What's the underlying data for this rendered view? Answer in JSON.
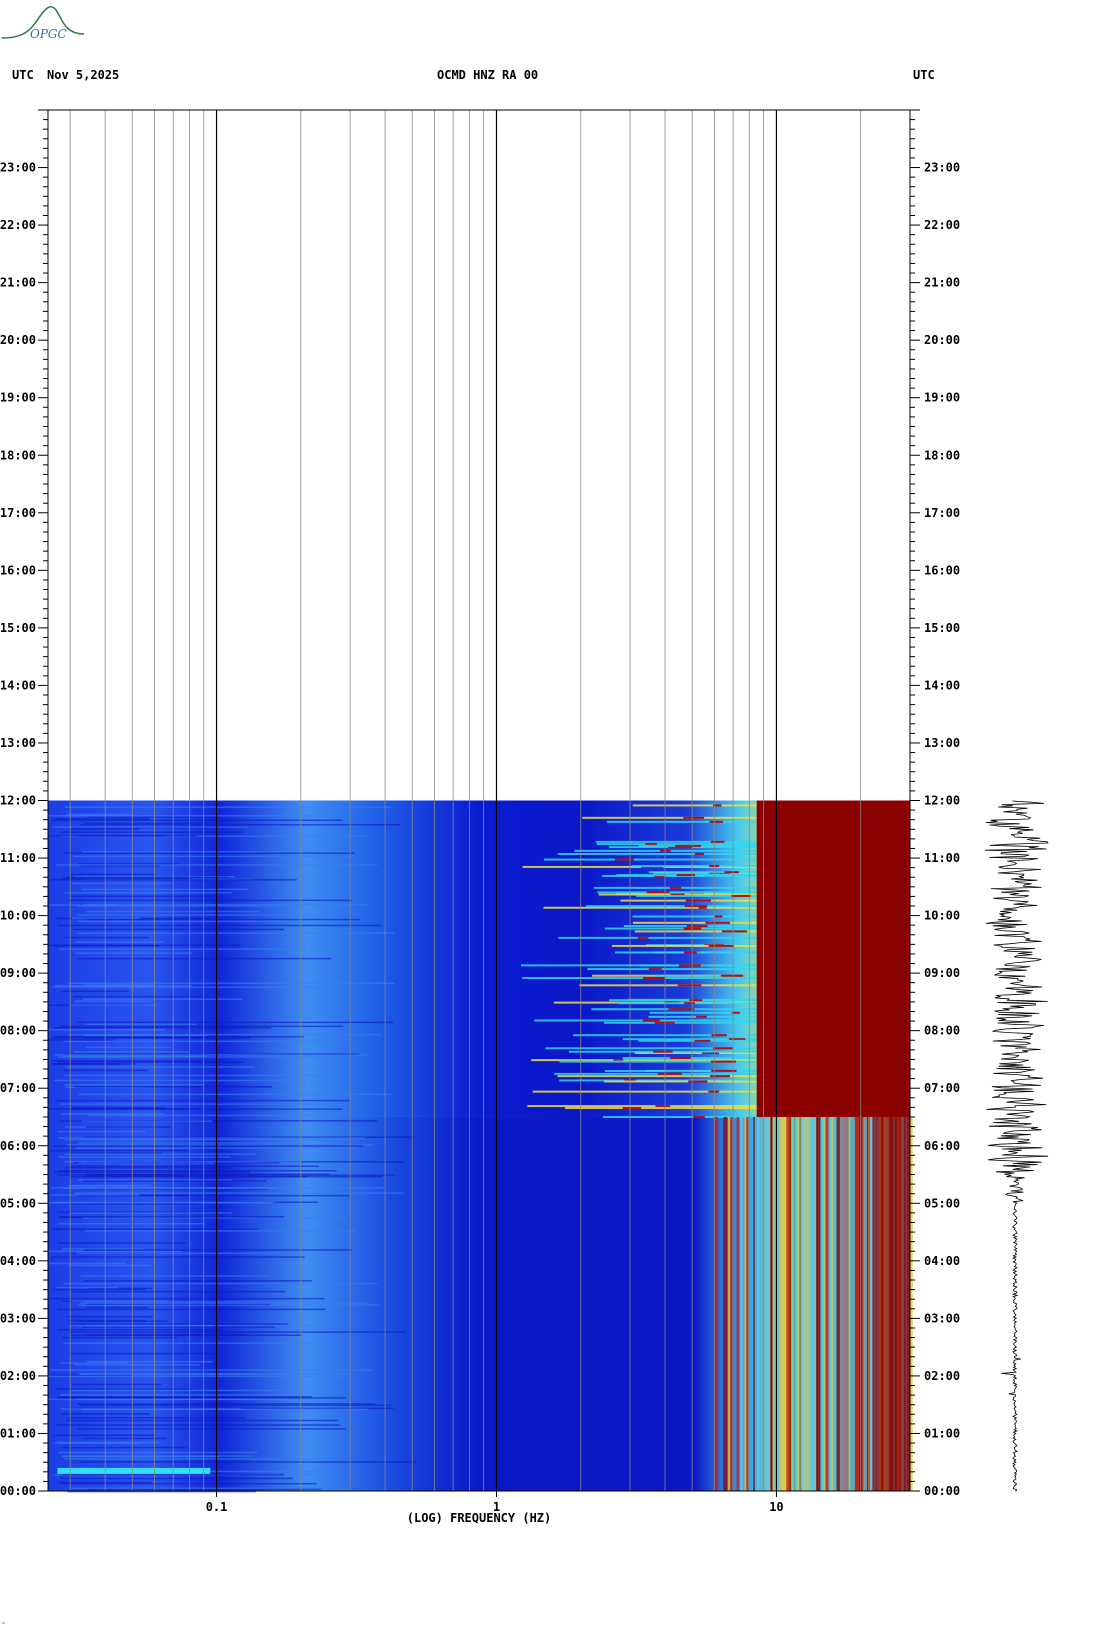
{
  "header": {
    "left_timezone": "UTC",
    "date": "Nov 5,2025",
    "station": "OCMD HNZ RA 00",
    "right_timezone": "UTC"
  },
  "logo": {
    "text": "OPGC",
    "color": "#2a7a3a"
  },
  "footer_mark": "‴",
  "colors": {
    "low": "#0a1ad8",
    "mid": "#2fd7f0",
    "high": "#f2e84a",
    "peak": "#8b0000"
  },
  "chart_data": {
    "type": "heatmap",
    "title": "OCMD HNZ RA 00",
    "xlabel": "(LOG) FREQUENCY (HZ)",
    "x_scale": "log",
    "x_range_hz": [
      0.025,
      30
    ],
    "x_ticks": [
      {
        "value": 0.1,
        "label": "0.1"
      },
      {
        "value": 1,
        "label": "1"
      },
      {
        "value": 10,
        "label": "10"
      }
    ],
    "y_range_hours": [
      0,
      24
    ],
    "y_tick_labels": [
      "00:00",
      "01:00",
      "02:00",
      "03:00",
      "04:00",
      "05:00",
      "06:00",
      "07:00",
      "08:00",
      "09:00",
      "10:00",
      "11:00",
      "12:00",
      "13:00",
      "14:00",
      "15:00",
      "16:00",
      "17:00",
      "18:00",
      "19:00",
      "20:00",
      "21:00",
      "22:00",
      "23:00"
    ],
    "data_end_time": "12:00",
    "grid": true,
    "bands": [
      {
        "f_min": 0.025,
        "f_max": 0.3,
        "level": "low"
      },
      {
        "f_min": 0.15,
        "f_max": 0.3,
        "level": "low-mid"
      },
      {
        "f_min": 3,
        "f_max": 8,
        "level": "mid-high",
        "time_range": [
          "06:00",
          "12:00"
        ]
      },
      {
        "f_min": 8,
        "f_max": 30,
        "level": "peak",
        "time_range": [
          "06:30",
          "12:00"
        ]
      },
      {
        "f_min": 6,
        "f_max": 30,
        "level": "mid-peak",
        "time_range": [
          "00:00",
          "06:30"
        ]
      }
    ],
    "seismogram": {
      "time_range": [
        "00:00",
        "12:00"
      ],
      "amplitude_trend": "low before 05:00, high 05:30 to 12:00"
    }
  }
}
